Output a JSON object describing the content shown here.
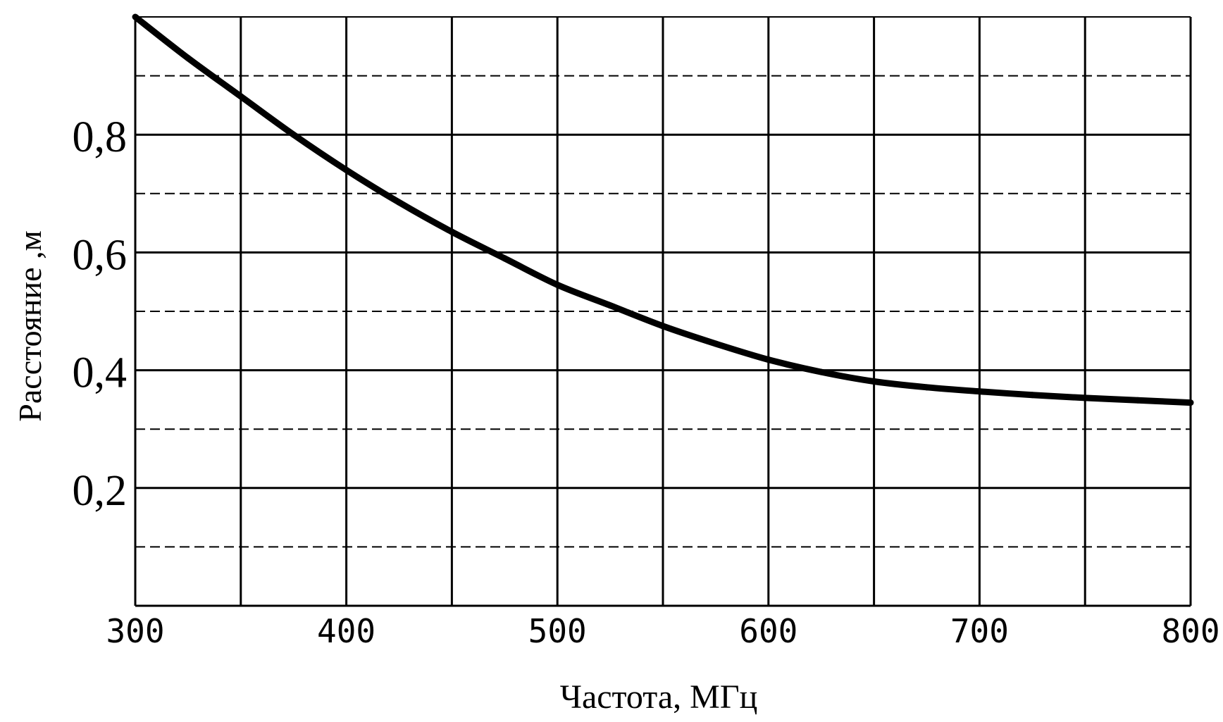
{
  "chart_data": {
    "type": "line",
    "xlabel": "Частота, МГц",
    "ylabel": "Расстояние ,м",
    "xlim": [
      300,
      800
    ],
    "ylim": [
      0,
      1.0
    ],
    "x_ticks": [
      300,
      400,
      500,
      600,
      700,
      800
    ],
    "x_tick_labels": [
      "300",
      "400",
      "500",
      "600",
      "700",
      "800"
    ],
    "y_ticks": [
      0.2,
      0.4,
      0.6,
      0.8
    ],
    "y_tick_labels": [
      "0,2",
      "0,4",
      "0,6",
      "0,8"
    ],
    "grid": true,
    "series": [
      {
        "x": [
          300,
          325,
          350,
          375,
          400,
          425,
          450,
          475,
          500,
          525,
          550,
          575,
          600,
          625,
          650,
          675,
          700,
          725,
          750,
          775,
          800
        ],
        "y": [
          1.0,
          0.93,
          0.865,
          0.8,
          0.74,
          0.685,
          0.635,
          0.59,
          0.545,
          0.51,
          0.475,
          0.445,
          0.418,
          0.397,
          0.381,
          0.371,
          0.364,
          0.358,
          0.353,
          0.349,
          0.345
        ]
      }
    ]
  },
  "colors": {
    "line": "#000000",
    "grid": "#000000",
    "background": "#ffffff"
  }
}
